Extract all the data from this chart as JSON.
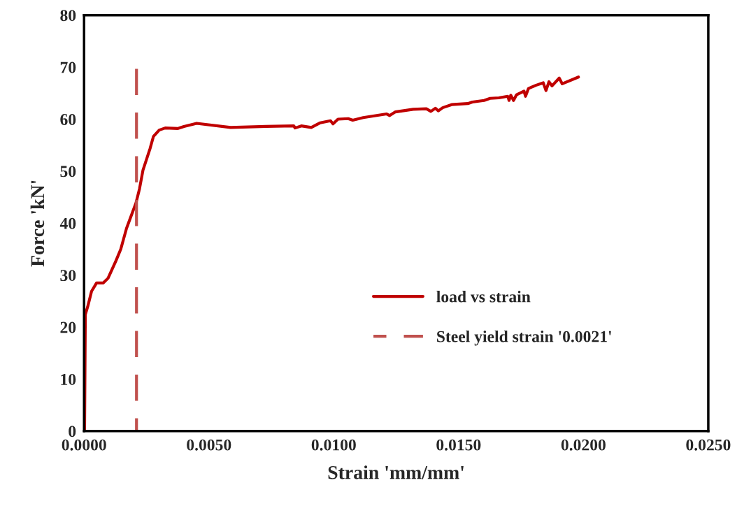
{
  "chart_data": {
    "type": "line",
    "xlabel": "Strain 'mm/mm'",
    "ylabel": "Force 'kN'",
    "xlim": [
      0,
      0.025
    ],
    "xticks": [
      {
        "value": 0,
        "label": "0.0000"
      },
      {
        "value": 0.005,
        "label": "0.0050"
      },
      {
        "value": 0.01,
        "label": "0.0100"
      },
      {
        "value": 0.015,
        "label": "0.0150"
      },
      {
        "value": 0.02,
        "label": "0.0200"
      },
      {
        "value": 0.025,
        "label": "0.0250"
      }
    ],
    "ylim": [
      0,
      80
    ],
    "yticks": [
      0,
      10,
      20,
      30,
      40,
      50,
      60,
      70,
      80
    ],
    "grid": false,
    "legend": "bottom right",
    "series": [
      {
        "name": "load vs strain",
        "color": "#c00000",
        "line_style": "solid",
        "x": [
          2e-05,
          5e-05,
          0.00016,
          0.0003,
          0.0005,
          0.00077,
          0.00096,
          0.00128,
          0.00147,
          0.0017,
          0.00208,
          0.00222,
          0.00236,
          0.00264,
          0.00278,
          0.00301,
          0.00325,
          0.00376,
          0.004,
          0.00451,
          0.00587,
          0.00728,
          0.0084,
          0.00845,
          0.0087,
          0.0091,
          0.00946,
          0.00987,
          0.00997,
          0.01017,
          0.01058,
          0.01076,
          0.01118,
          0.01212,
          0.01224,
          0.01247,
          0.01318,
          0.01371,
          0.01389,
          0.01407,
          0.01419,
          0.01436,
          0.01472,
          0.01537,
          0.01555,
          0.01602,
          0.01626,
          0.01661,
          0.01697,
          0.01702,
          0.01709,
          0.0172,
          0.01732,
          0.01762,
          0.01768,
          0.0178,
          0.01809,
          0.01839,
          0.0185,
          0.01862,
          0.01874,
          0.01903,
          0.01915,
          0.0198
        ],
        "values": [
          0,
          22.4,
          24.2,
          26.9,
          28.5,
          28.5,
          29.4,
          32.8,
          35.0,
          39.0,
          43.9,
          46.6,
          50.2,
          54.3,
          56.7,
          57.9,
          58.3,
          58.2,
          58.6,
          59.2,
          58.4,
          58.6,
          58.7,
          58.3,
          58.7,
          58.4,
          59.3,
          59.7,
          59.1,
          60.0,
          60.1,
          59.8,
          60.3,
          61.0,
          60.7,
          61.4,
          61.9,
          62.0,
          61.5,
          62.1,
          61.6,
          62.2,
          62.8,
          63.0,
          63.3,
          63.6,
          64.0,
          64.1,
          64.4,
          63.6,
          64.6,
          63.6,
          64.7,
          65.4,
          64.4,
          65.9,
          66.5,
          67.0,
          65.5,
          67.2,
          66.4,
          67.9,
          66.8,
          68.1
        ]
      },
      {
        "name": "Steel yield strain '0.0021'",
        "color": "#c0504d",
        "line_style": "dashed",
        "x": [
          0.0021,
          0.0021
        ],
        "values": [
          0,
          70
        ]
      }
    ]
  }
}
